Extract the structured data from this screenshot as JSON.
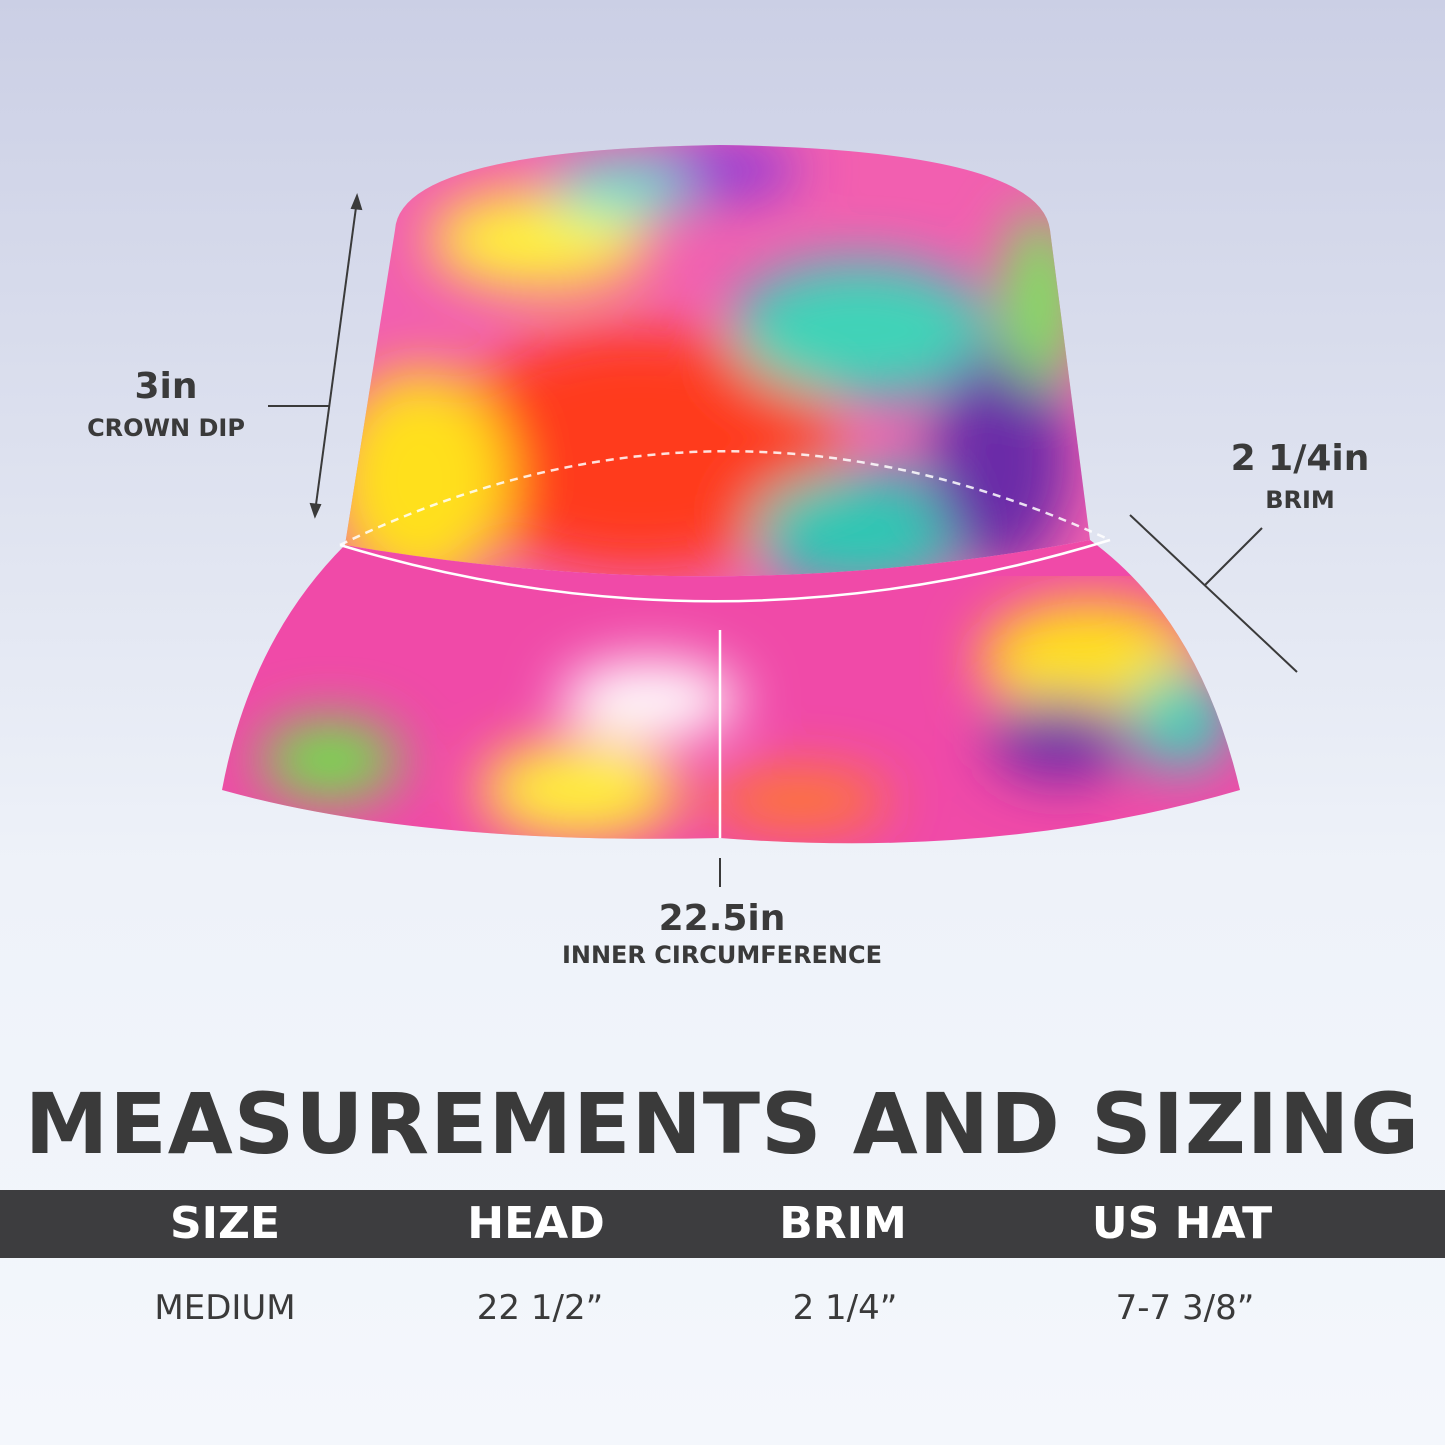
{
  "annotations": {
    "crown": {
      "value": "3in",
      "label": "CROWN DIP"
    },
    "brim": {
      "value": "2 1/4in",
      "label": "BRIM"
    },
    "circumference": {
      "value": "22.5in",
      "label": "INNER CIRCUMFERENCE"
    }
  },
  "title": "MEASUREMENTS AND SIZING",
  "table": {
    "headers": [
      "SIZE",
      "HEAD",
      "BRIM",
      "US HAT"
    ],
    "rows": [
      [
        "MEDIUM",
        "22 1/2”",
        "2 1/4”",
        "7-7 3/8”"
      ]
    ]
  },
  "colors": {
    "band": "#3d3d3f",
    "text": "#3a3a3a",
    "header_text": "#ffffff"
  }
}
